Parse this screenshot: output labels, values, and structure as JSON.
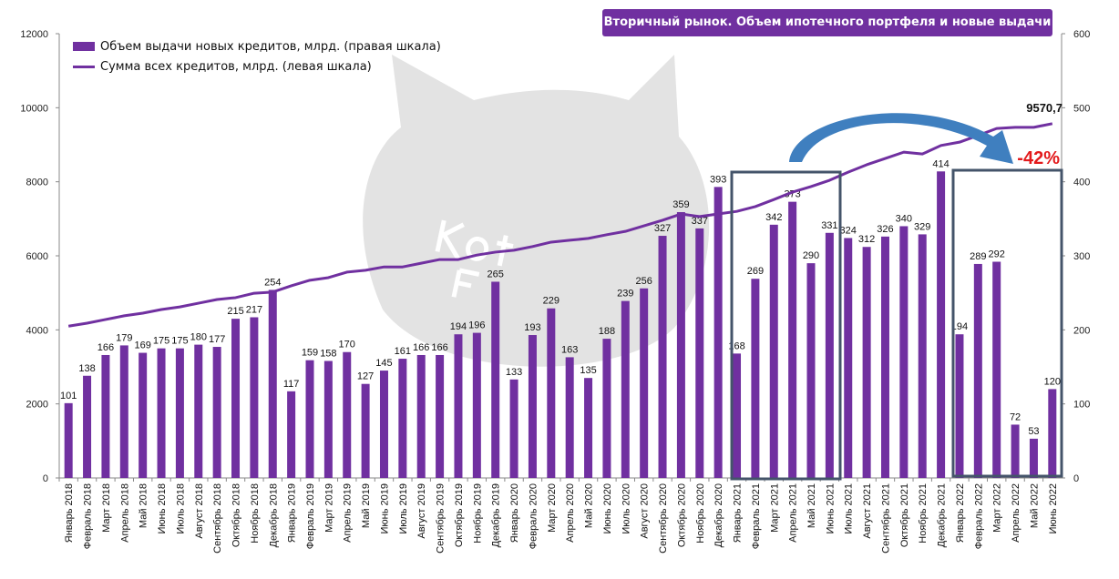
{
  "title": "Вторичный рынок. Объем ипотечного портфеля и новые выдачи",
  "watermark": "Kot .Finance",
  "chart_data": {
    "type": "bar+line",
    "title": "Вторичный рынок. Объем ипотечного портфеля и новые выдачи",
    "legend_position": "top-left",
    "grid": false,
    "categories": [
      "Январь 2018",
      "Февраль 2018",
      "Март 2018",
      "Апрель 2018",
      "Май 2018",
      "Июнь 2018",
      "Июль 2018",
      "Август 2018",
      "Сентябрь 2018",
      "Октябрь 2018",
      "Ноябрь 2018",
      "Декабрь 2018",
      "Январь 2019",
      "Февраль 2019",
      "Март 2019",
      "Апрель 2019",
      "Май 2019",
      "Июнь 2019",
      "Июль 2019",
      "Август 2019",
      "Сентябрь 2019",
      "Октябрь 2019",
      "Ноябрь 2019",
      "Декабрь 2019",
      "Январь 2020",
      "Февраль 2020",
      "Март 2020",
      "Апрель 2020",
      "Май 2020",
      "Июнь 2020",
      "Июль 2020",
      "Август 2020",
      "Сентябрь 2020",
      "Октябрь 2020",
      "Ноябрь 2020",
      "Декабрь 2020",
      "Январь 2021",
      "Февраль 2021",
      "Март 2021",
      "Апрель 2021",
      "Май 2021",
      "Июнь 2021",
      "Июль 2021",
      "Август 2021",
      "Сентябрь 2021",
      "Октябрь 2021",
      "Ноябрь 2021",
      "Декабрь 2021",
      "Январь 2022",
      "Февраль 2022",
      "Март 2022",
      "Апрель 2022",
      "Май 2022",
      "Июнь 2022"
    ],
    "left_axis": {
      "ylim": [
        0,
        12000
      ],
      "ticks": [
        0,
        2000,
        4000,
        6000,
        8000,
        10000,
        12000
      ]
    },
    "right_axis": {
      "ylim": [
        0,
        600
      ],
      "ticks": [
        0,
        100,
        200,
        300,
        400,
        500,
        600
      ]
    },
    "series": [
      {
        "name": "Объем выдачи новых кредитов, млрд. (правая шкала)",
        "type": "bar",
        "axis": "right",
        "color": "#7030a0",
        "values": [
          101,
          138,
          166,
          179,
          169,
          175,
          175,
          180,
          177,
          215,
          217,
          254,
          117,
          159,
          158,
          170,
          127,
          145,
          161,
          166,
          166,
          194,
          196,
          265,
          133,
          193,
          229,
          163,
          135,
          188,
          239,
          256,
          327,
          359,
          337,
          393,
          168,
          269,
          342,
          373,
          290,
          331,
          324,
          312,
          326,
          340,
          329,
          414,
          194,
          289,
          292,
          72,
          53,
          120
        ]
      },
      {
        "name": "Сумма всех кредитов, млрд. (левая шкала)",
        "type": "line",
        "axis": "left",
        "color": "#7030a0",
        "values": [
          4100,
          4180,
          4280,
          4380,
          4450,
          4550,
          4620,
          4720,
          4820,
          4870,
          4990,
          5020,
          5190,
          5340,
          5410,
          5560,
          5610,
          5700,
          5700,
          5800,
          5900,
          5900,
          6020,
          6100,
          6150,
          6250,
          6370,
          6420,
          6470,
          6570,
          6660,
          6810,
          6960,
          7130,
          7060,
          7130,
          7200,
          7330,
          7520,
          7720,
          7870,
          8040,
          8260,
          8460,
          8630,
          8800,
          8750,
          8980,
          9070,
          9250,
          9440,
          9470,
          9470,
          9570.7
        ]
      }
    ],
    "annotations": {
      "last_value": "9570,7",
      "change": "-42%",
      "change_color": "#e31a1c",
      "box_color": "#44546a",
      "arrow_color": "#3f7fbf"
    }
  }
}
